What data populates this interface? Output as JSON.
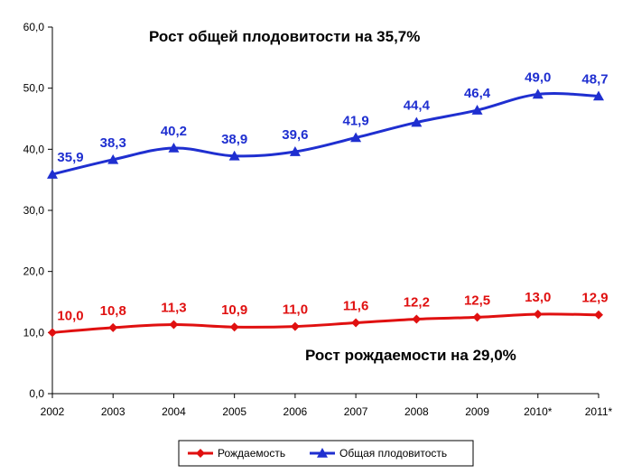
{
  "chart_data": {
    "type": "line",
    "categories": [
      "2002",
      "2003",
      "2004",
      "2005",
      "2006",
      "2007",
      "2008",
      "2009",
      "2010*",
      "2011*"
    ],
    "ylim": [
      0,
      60
    ],
    "ytick_labels": [
      "0,0",
      "10,0",
      "20,0",
      "30,0",
      "40,0",
      "50,0",
      "60,0"
    ],
    "ytick_values": [
      0,
      10,
      20,
      30,
      40,
      50,
      60
    ],
    "grid": false,
    "legend_position": "bottom",
    "series": [
      {
        "name": "Рождаемость",
        "color": "#e01010",
        "marker": "diamond",
        "values": [
          10.0,
          10.8,
          11.3,
          10.9,
          11.0,
          11.6,
          12.2,
          12.5,
          13.0,
          12.9
        ],
        "labels": [
          "10,0",
          "10,8",
          "11,3",
          "10,9",
          "11,0",
          "11,6",
          "12,2",
          "12,5",
          "13,0",
          "12,9"
        ]
      },
      {
        "name": "Общая плодовитость",
        "color": "#1f2fd0",
        "marker": "triangle",
        "values": [
          35.9,
          38.3,
          40.2,
          38.9,
          39.6,
          41.9,
          44.4,
          46.4,
          49.0,
          48.7
        ],
        "labels": [
          "35,9",
          "38,3",
          "40,2",
          "38,9",
          "39,6",
          "41,9",
          "44,4",
          "46,4",
          "49,0",
          "48,7"
        ]
      }
    ],
    "annotations": [
      {
        "text": "Рост общей плодовитости на 35,7%"
      },
      {
        "text": "Рост рождаемости на 29,0%"
      }
    ]
  }
}
